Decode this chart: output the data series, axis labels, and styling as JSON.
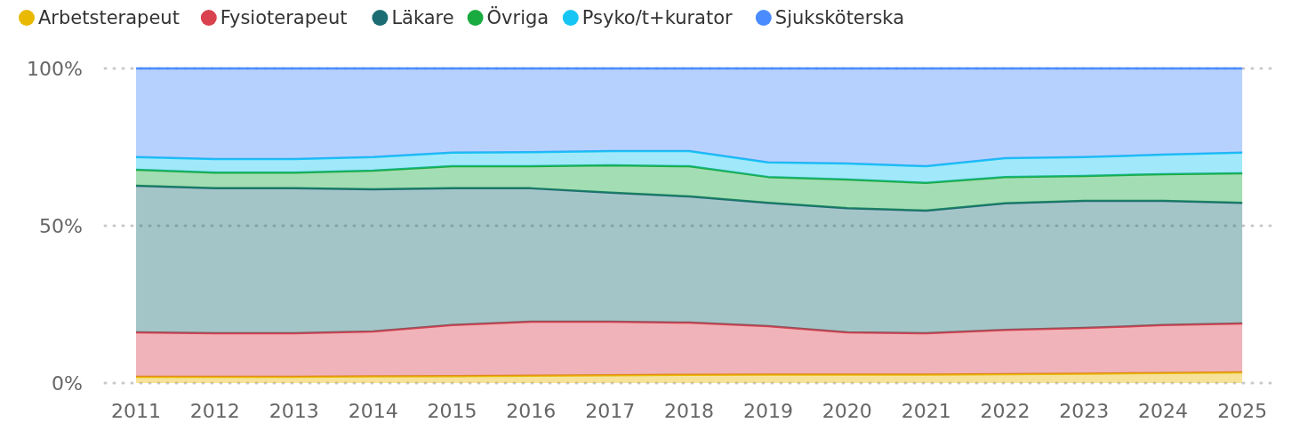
{
  "chart_data": {
    "type": "area",
    "stacked": true,
    "x": [
      "2011",
      "2012",
      "2013",
      "2014",
      "2015",
      "2016",
      "2017",
      "2018",
      "2019",
      "2020",
      "2021",
      "2022",
      "2023",
      "2024",
      "2025"
    ],
    "xlim": [
      "2010-08-10",
      "2025-05-16"
    ],
    "ylim": [
      0,
      100
    ],
    "yticks": [
      {
        "value": 0,
        "label": "0%"
      },
      {
        "value": 50,
        "label": "50%"
      },
      {
        "value": 100,
        "label": "100%"
      }
    ],
    "xticks": [
      "2011",
      "2012",
      "2013",
      "2014",
      "2015",
      "2016",
      "2017",
      "2018",
      "2019",
      "2020",
      "2021",
      "2022",
      "2023",
      "2024",
      "2025"
    ],
    "grid": "y",
    "legend": "top left",
    "series": [
      {
        "name": "Arbetsterapeut",
        "color": "#e8b900",
        "values": [
          2.0,
          2.0,
          2.0,
          2.1,
          2.2,
          2.3,
          2.5,
          2.6,
          2.7,
          2.7,
          2.7,
          2.8,
          3.0,
          3.2,
          3.4
        ]
      },
      {
        "name": "Fysioterapeut",
        "color": "#d9414f",
        "values": [
          14.1,
          13.8,
          13.8,
          14.3,
          16.2,
          17.2,
          17.0,
          16.6,
          15.4,
          13.4,
          13.1,
          14.1,
          14.5,
          15.2,
          15.5
        ]
      },
      {
        "name": "Läkare",
        "color": "#1b6d73",
        "values": [
          46.6,
          46.1,
          46.1,
          45.2,
          43.5,
          42.4,
          41.0,
          40.1,
          39.2,
          39.5,
          39.0,
          40.2,
          40.4,
          39.5,
          38.4
        ]
      },
      {
        "name": "Övriga",
        "color": "#1aab40",
        "values": [
          5.1,
          5.0,
          5.0,
          5.9,
          7.0,
          7.0,
          8.7,
          9.6,
          8.2,
          9.1,
          8.8,
          8.4,
          7.9,
          8.5,
          9.4
        ]
      },
      {
        "name": "Psyko/t+kurator",
        "color": "#15c6f4",
        "values": [
          4.0,
          4.3,
          4.3,
          4.3,
          4.3,
          4.5,
          4.5,
          4.8,
          4.6,
          5.1,
          5.3,
          6.0,
          6.0,
          6.2,
          6.5
        ]
      },
      {
        "name": "Sjuksköterska",
        "color": "#4a8cff",
        "values": [
          28.2,
          28.8,
          28.8,
          28.2,
          26.8,
          26.6,
          26.3,
          26.3,
          29.9,
          30.2,
          31.1,
          28.5,
          28.2,
          27.4,
          26.8
        ]
      }
    ]
  }
}
